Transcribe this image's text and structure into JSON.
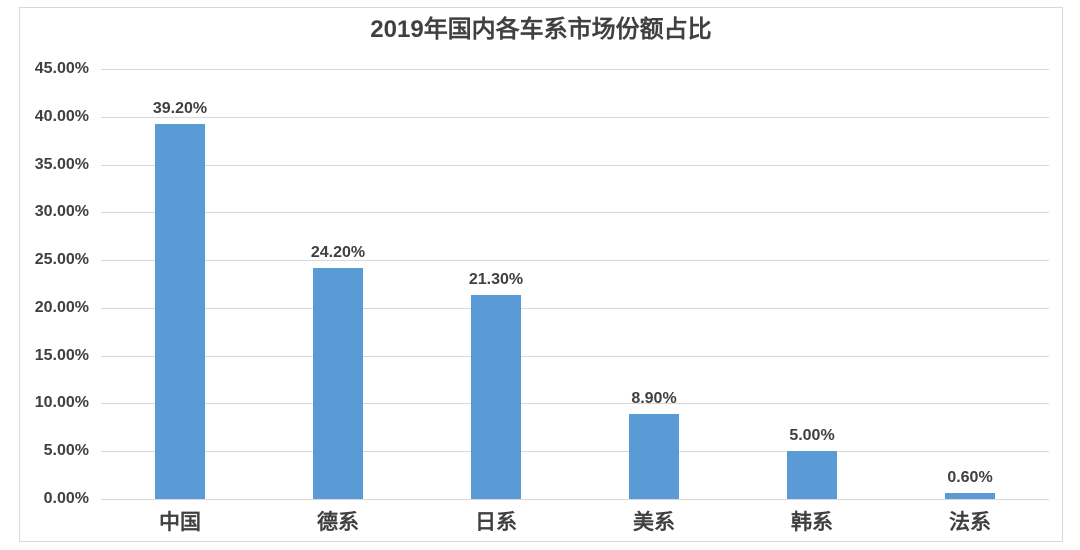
{
  "title": "2019年国内各车系市场份额占比",
  "chart_data": {
    "type": "bar",
    "title": "2019年国内各车系市场份额占比",
    "categories": [
      "中国",
      "德系",
      "日系",
      "美系",
      "韩系",
      "法系"
    ],
    "values": [
      39.2,
      24.2,
      21.3,
      8.9,
      5.0,
      0.6
    ],
    "value_labels": [
      "39.20%",
      "24.20%",
      "21.30%",
      "8.90%",
      "5.00%",
      "0.60%"
    ],
    "xlabel": "",
    "ylabel": "",
    "ylim": [
      0,
      45
    ],
    "yticks": [
      {
        "value": 0,
        "label": "0.00%"
      },
      {
        "value": 5,
        "label": "5.00%"
      },
      {
        "value": 10,
        "label": "10.00%"
      },
      {
        "value": 15,
        "label": "15.00%"
      },
      {
        "value": 20,
        "label": "20.00%"
      },
      {
        "value": 25,
        "label": "25.00%"
      },
      {
        "value": 30,
        "label": "30.00%"
      },
      {
        "value": 35,
        "label": "35.00%"
      },
      {
        "value": 40,
        "label": "40.00%"
      },
      {
        "value": 45,
        "label": "45.00%"
      }
    ],
    "grid": true,
    "legend": false
  },
  "colors": {
    "bar": "#5B9BD5",
    "gridline": "#D9D9D9",
    "frame_border": "#D9D9D9",
    "text": "#404040",
    "background": "#FFFFFF"
  }
}
